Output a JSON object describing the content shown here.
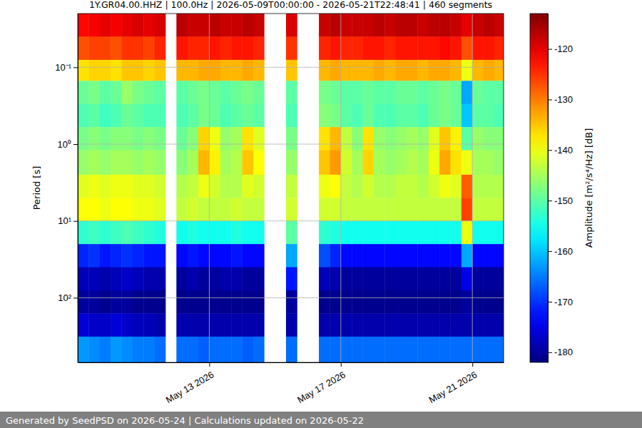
{
  "chart_data": {
    "type": "heatmap",
    "title": "1Y.GR04.00.HHZ | 100.0Hz | 2026-05-09T00:00:00 - 2026-05-21T22:48:41 | 460 segments",
    "y_label": "Period [s]",
    "footer": "Generated by SeedPSD on 2026-05-24 | Calculations updated on 2026-05-22",
    "log": "y",
    "grid": true,
    "color": "jet",
    "xlim": [
      "2026-05-09T00:00:00",
      "2026-05-21T22:48:41"
    ],
    "xticks": [
      {
        "value": "2026-05-13",
        "label": "May 13 2026"
      },
      {
        "value": "2026-05-17",
        "label": "May 17 2026"
      },
      {
        "value": "2026-05-21",
        "label": "May 21 2026"
      }
    ],
    "ylim": [
      0.02,
      693
    ],
    "yticks": [
      {
        "value": 0.1,
        "label": "10⁻¹"
      },
      {
        "value": 1,
        "label": "10⁰"
      },
      {
        "value": 10,
        "label": "10¹"
      },
      {
        "value": 100,
        "label": "10²"
      }
    ],
    "colorbar": {
      "label": "Amplitude [m²/s⁴/Hz] [dB]",
      "range": [
        -182,
        -113
      ],
      "ticks": [
        -180,
        -170,
        -160,
        -150,
        -140,
        -130,
        -120
      ]
    },
    "x_edges": [
      "2026-05-09T00:00",
      "2026-05-09T08:00",
      "2026-05-09T16:00",
      "2026-05-10T00:00",
      "2026-05-10T08:00",
      "2026-05-10T16:00",
      "2026-05-11T00:00",
      "2026-05-11T08:00",
      "2026-05-11T16:00",
      "2026-05-12T00:00",
      "2026-05-12T08:00",
      "2026-05-12T16:00",
      "2026-05-13T00:00",
      "2026-05-13T08:00",
      "2026-05-13T16:00",
      "2026-05-14T00:00",
      "2026-05-14T08:00",
      "2026-05-14T16:00",
      "2026-05-15T00:00",
      "2026-05-15T08:00",
      "2026-05-15T16:00",
      "2026-05-16T00:00",
      "2026-05-16T08:00",
      "2026-05-16T16:00",
      "2026-05-17T00:00",
      "2026-05-17T08:00",
      "2026-05-17T16:00",
      "2026-05-18T00:00",
      "2026-05-18T08:00",
      "2026-05-18T16:00",
      "2026-05-19T00:00",
      "2026-05-19T08:00",
      "2026-05-19T16:00",
      "2026-05-20T00:00",
      "2026-05-20T08:00",
      "2026-05-20T16:00",
      "2026-05-21T00:00",
      "2026-05-21T08:00",
      "2026-05-21T16:00",
      "2026-05-22T00:00"
    ],
    "y_edges": [
      0.02,
      0.04,
      0.08,
      0.15,
      0.3,
      0.6,
      1.2,
      2.5,
      5,
      10,
      20,
      40,
      80,
      160,
      320,
      693
    ],
    "values": [
      [
        -122,
        -127,
        -137,
        -149,
        -151,
        -148,
        -146,
        -141,
        -139,
        -153,
        -171,
        -178,
        -180,
        -176,
        -163
      ],
      [
        -121,
        -126,
        -136,
        -148,
        -150,
        -147,
        -145,
        -140,
        -139,
        -152,
        -170,
        -178,
        -180,
        -177,
        -164
      ],
      [
        -120,
        -126,
        -136,
        -150,
        -152,
        -148,
        -146,
        -141,
        -140,
        -153,
        -172,
        -179,
        -181,
        -177,
        -165
      ],
      [
        -121,
        -127,
        -137,
        -149,
        -151,
        -147,
        -145,
        -140,
        -139,
        -152,
        -171,
        -178,
        -180,
        -176,
        -163
      ],
      [
        -120,
        -125,
        -135,
        -146,
        -149,
        -147,
        -145,
        -140,
        -139,
        -151,
        -170,
        -177,
        -180,
        -177,
        -164
      ],
      [
        -119,
        -125,
        -135,
        -148,
        -150,
        -148,
        -146,
        -141,
        -140,
        -152,
        -171,
        -178,
        -181,
        -178,
        -165
      ],
      [
        -120,
        -126,
        -136,
        -149,
        -151,
        -147,
        -145,
        -141,
        -140,
        -153,
        -172,
        -179,
        -181,
        -178,
        -165
      ],
      [
        -119,
        -124,
        -135,
        -150,
        -151,
        -148,
        -146,
        -142,
        -141,
        -154,
        -172,
        -179,
        -181,
        -179,
        -166
      ],
      [
        null,
        null,
        null,
        null,
        null,
        null,
        null,
        null,
        null,
        null,
        null,
        null,
        null,
        null,
        null
      ],
      [
        -117,
        -123,
        -134,
        -150,
        -151,
        -149,
        -147,
        -144,
        -143,
        -155,
        -173,
        -180,
        -181,
        -179,
        -166
      ],
      [
        -118,
        -124,
        -134,
        -149,
        -150,
        -147,
        -145,
        -143,
        -142,
        -154,
        -172,
        -179,
        -181,
        -179,
        -166
      ],
      [
        -118,
        -124,
        -133,
        -148,
        -148,
        -136,
        -134,
        -140,
        -143,
        -155,
        -173,
        -180,
        -181,
        -179,
        -167
      ],
      [
        -117,
        -123,
        -133,
        -149,
        -149,
        -140,
        -138,
        -142,
        -143,
        -155,
        -173,
        -180,
        -181,
        -179,
        -166
      ],
      [
        -118,
        -124,
        -134,
        -150,
        -151,
        -146,
        -145,
        -144,
        -143,
        -155,
        -173,
        -179,
        -181,
        -179,
        -166
      ],
      [
        -118,
        -123,
        -134,
        -149,
        -150,
        -145,
        -144,
        -144,
        -142,
        -154,
        -172,
        -179,
        -181,
        -179,
        -166
      ],
      [
        -117,
        -123,
        -133,
        -148,
        -149,
        -137,
        -135,
        -141,
        -143,
        -155,
        -173,
        -180,
        -181,
        -179,
        -167
      ],
      [
        -118,
        -124,
        -134,
        -149,
        -150,
        -141,
        -139,
        -142,
        -143,
        -155,
        -173,
        -180,
        -181,
        -179,
        -166
      ],
      [
        null,
        null,
        null,
        null,
        null,
        null,
        null,
        null,
        null,
        null,
        null,
        null,
        null,
        null,
        null
      ],
      [
        null,
        null,
        null,
        null,
        null,
        null,
        null,
        null,
        null,
        null,
        null,
        null,
        null,
        null,
        null
      ],
      [
        -119,
        -125,
        -135,
        -150,
        -151,
        -148,
        -146,
        -143,
        -142,
        -150,
        -162,
        -172,
        -180,
        -179,
        -166
      ],
      [
        null,
        null,
        null,
        null,
        null,
        null,
        null,
        null,
        null,
        null,
        null,
        null,
        null,
        null,
        null
      ],
      [
        null,
        null,
        null,
        null,
        null,
        null,
        null,
        null,
        null,
        null,
        null,
        null,
        null,
        null,
        null
      ],
      [
        -118,
        -124,
        -134,
        -148,
        -147,
        -137,
        -135,
        -140,
        -142,
        -153,
        -168,
        -178,
        -181,
        -179,
        -166
      ],
      [
        -117,
        -123,
        -133,
        -149,
        -148,
        -134,
        -132,
        -139,
        -142,
        -154,
        -171,
        -179,
        -181,
        -179,
        -166
      ],
      [
        -118,
        -124,
        -134,
        -150,
        -150,
        -143,
        -142,
        -143,
        -143,
        -155,
        -173,
        -180,
        -181,
        -179,
        -166
      ],
      [
        -118,
        -124,
        -134,
        -150,
        -151,
        -147,
        -145,
        -144,
        -143,
        -155,
        -173,
        -180,
        -181,
        -179,
        -166
      ],
      [
        -118,
        -123,
        -134,
        -149,
        -149,
        -137,
        -136,
        -142,
        -143,
        -155,
        -173,
        -180,
        -181,
        -179,
        -166
      ],
      [
        -117,
        -123,
        -133,
        -150,
        -151,
        -146,
        -145,
        -144,
        -143,
        -155,
        -173,
        -180,
        -181,
        -179,
        -166
      ],
      [
        -118,
        -124,
        -134,
        -150,
        -151,
        -147,
        -146,
        -144,
        -143,
        -155,
        -173,
        -180,
        -181,
        -179,
        -166
      ],
      [
        -117,
        -123,
        -133,
        -149,
        -150,
        -146,
        -145,
        -143,
        -143,
        -155,
        -173,
        -180,
        -181,
        -179,
        -166
      ],
      [
        -117,
        -123,
        -133,
        -149,
        -150,
        -145,
        -144,
        -143,
        -143,
        -155,
        -173,
        -180,
        -181,
        -179,
        -166
      ],
      [
        -118,
        -123,
        -134,
        -150,
        -151,
        -146,
        -145,
        -144,
        -143,
        -155,
        -173,
        -180,
        -181,
        -179,
        -166
      ],
      [
        -117,
        -123,
        -133,
        -149,
        -149,
        -141,
        -140,
        -142,
        -143,
        -155,
        -173,
        -180,
        -181,
        -179,
        -166
      ],
      [
        -117,
        -122,
        -133,
        -148,
        -148,
        -135,
        -133,
        -140,
        -143,
        -155,
        -173,
        -180,
        -181,
        -179,
        -166
      ],
      [
        -118,
        -123,
        -134,
        -149,
        -149,
        -138,
        -137,
        -141,
        -143,
        -155,
        -173,
        -180,
        -181,
        -179,
        -166
      ],
      [
        -120,
        -127,
        -140,
        -162,
        -160,
        -150,
        -140,
        -128,
        -126,
        -140,
        -162,
        -175,
        -180,
        -179,
        -166
      ],
      [
        -118,
        -123,
        -134,
        -149,
        -150,
        -146,
        -145,
        -144,
        -143,
        -155,
        -173,
        -180,
        -181,
        -179,
        -166
      ],
      [
        -117,
        -123,
        -133,
        -150,
        -150,
        -147,
        -145,
        -144,
        -143,
        -155,
        -173,
        -180,
        -181,
        -179,
        -166
      ],
      [
        -118,
        -124,
        -134,
        -150,
        -151,
        -147,
        -146,
        -144,
        -143,
        -155,
        -173,
        -180,
        -181,
        -179,
        -166
      ]
    ]
  }
}
